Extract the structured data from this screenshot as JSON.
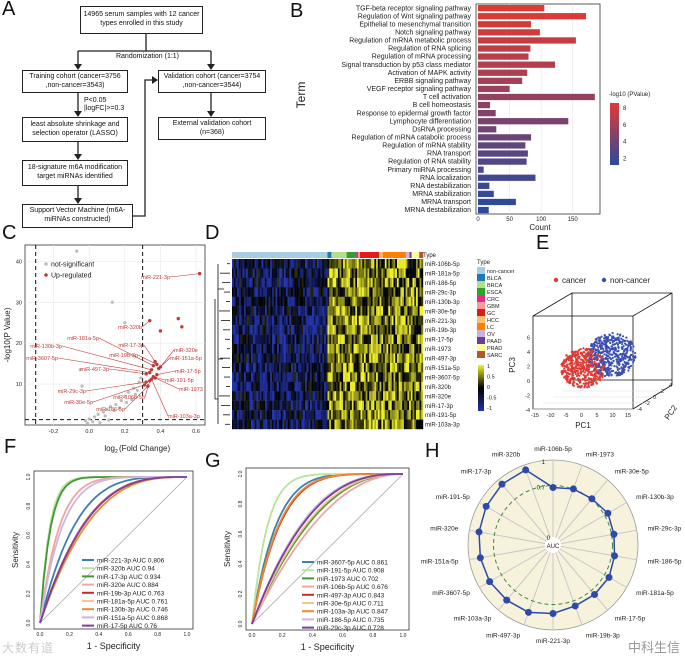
{
  "panels": {
    "A": "A",
    "B": "B",
    "C": "C",
    "D": "D",
    "E": "E",
    "F": "F",
    "G": "G",
    "H": "H"
  },
  "flowchart": {
    "start": "14965 serum samples with 12 cancer types enrolled in this study",
    "randomization": "Randomization (1:1)",
    "training": "Training cohort (cancer=3756 ,non-cancer=3543)",
    "validation": "Validation cohort (cancer=3754 ,non-cancer=3544)",
    "filter": "P<0.05 |logFC|>=0.3",
    "lasso": "least absolute shrinkage and selection operator (LASSO)",
    "external": "External validation cohort (n=368)",
    "signature": "18-signature m6A modification target miRNAs identified",
    "svm": "Support Vector Machine (m6A-miRNAs constructed)"
  },
  "watermarks": [
    "大数有道",
    "中科生信"
  ],
  "chart_data": [
    {
      "panel": "B",
      "type": "bar",
      "orientation": "horizontal",
      "xlabel": "Count",
      "ylabel": "Term",
      "xlim": [
        0,
        190
      ],
      "xticks": [
        0,
        50,
        100,
        150
      ],
      "legend_title": "-log10 (PValue)",
      "legend_ticks": [
        2,
        4,
        6,
        8
      ],
      "colors": {
        "low": "#2b4a9b",
        "high": "#e03a34"
      },
      "categories": [
        "TGF-beta receptor signaling pathway",
        "Regulation of Wnt signaling pathway",
        "Epithelial to mesenchymal transition",
        "Notch signaling pathway",
        "Regulation of mRNA metabolic process",
        "Regulation of RNA splicing",
        "Regulation of mRNA processing",
        "Signal transduction by p53 class mediator",
        "Activation of MAPK activity",
        "ERBB signaling pathway",
        "VEGF receptor signaling pathway",
        "T cell activation",
        "B cell homeostasis",
        "Response to epidermal growth factor",
        "Lymphocyte differentiation",
        "DsRNA processing",
        "Regulation of mRNA catabolic process",
        "Regulation of mRNA stability",
        "RNA transport",
        "Regulation of RNA stability",
        "Primary miRNA processing",
        "RNA localization",
        "RNA destabilization",
        "MRNA stabilization",
        "MRNA transport",
        "MRNA destabilization"
      ],
      "values": [
        105,
        171,
        84,
        98,
        155,
        83,
        80,
        122,
        78,
        70,
        50,
        185,
        19,
        28,
        143,
        29,
        84,
        75,
        79,
        77,
        9,
        91,
        18,
        25,
        60,
        17
      ],
      "pvalue": [
        8.6,
        8.4,
        8.1,
        7.9,
        7.6,
        7.4,
        7.1,
        6.9,
        6.6,
        6.3,
        6.0,
        5.6,
        5.3,
        5.0,
        4.6,
        4.3,
        4.0,
        3.6,
        3.3,
        3.0,
        2.7,
        2.4,
        2.1,
        1.9,
        1.7,
        1.5
      ]
    },
    {
      "panel": "C",
      "type": "scatter",
      "xlabel": "log2(Fold Change)",
      "ylabel": "-log10(P Value)",
      "xlim": [
        -0.36,
        0.65
      ],
      "ylim": [
        0,
        44
      ],
      "xticks": [
        -0.2,
        0.0,
        0.2,
        0.4,
        0.6
      ],
      "yticks": [
        10,
        20,
        30,
        40
      ],
      "thresholds": {
        "x": [
          -0.3,
          0.3
        ],
        "y": 1.3
      },
      "legend": [
        "not-significant",
        "Up-regulated"
      ],
      "legend_position": "top-left",
      "colors": {
        "ns": "#bdbdbd",
        "up": "#c0393b"
      },
      "up_points": [
        {
          "label": "miR-221-3p",
          "x": 0.62,
          "y": 37
        },
        {
          "label": "miR-320b",
          "x": 0.34,
          "y": 25.5
        },
        {
          "label": "miR-181a-5p",
          "x": 0.36,
          "y": 14.5
        },
        {
          "label": "miR-17-3p",
          "x": 0.37,
          "y": 15.5
        },
        {
          "label": "miR-130b-3p",
          "x": 0.35,
          "y": 13.5
        },
        {
          "label": "miR-19b-3p",
          "x": 0.38,
          "y": 14.8
        },
        {
          "label": "miR-320e",
          "x": 0.4,
          "y": 14.2
        },
        {
          "label": "miR-151a-5p",
          "x": 0.39,
          "y": 13.8
        },
        {
          "label": "miR-3607-5p",
          "x": 0.34,
          "y": 12.8
        },
        {
          "label": "miR-497-3p",
          "x": 0.32,
          "y": 12.5
        },
        {
          "label": "miR-17-5p",
          "x": 0.38,
          "y": 12.3
        },
        {
          "label": "miR-191-5p",
          "x": 0.36,
          "y": 11.8
        },
        {
          "label": "miR-1973",
          "x": 0.37,
          "y": 11.5
        },
        {
          "label": "miR-29c-3p",
          "x": 0.32,
          "y": 10.5
        },
        {
          "label": "miR-106b-5p",
          "x": 0.34,
          "y": 10.8
        },
        {
          "label": "miR-30e-5p",
          "x": 0.31,
          "y": 9.8
        },
        {
          "label": "miR-186-5p",
          "x": 0.33,
          "y": 9.5
        },
        {
          "label": "miR-103a-3p",
          "x": 0.35,
          "y": 11.2
        },
        {
          "label": "",
          "x": 0.5,
          "y": 26
        },
        {
          "label": "",
          "x": 0.52,
          "y": 24
        },
        {
          "label": "",
          "x": 0.4,
          "y": 23
        }
      ],
      "ns_points": [
        [
          -0.07,
          42.5
        ],
        [
          0.13,
          30
        ],
        [
          0.2,
          25
        ],
        [
          -0.05,
          13.5
        ],
        [
          -0.04,
          9.5
        ],
        [
          0.25,
          9
        ],
        [
          0.22,
          8
        ],
        [
          0.2,
          7
        ],
        [
          0.18,
          6
        ],
        [
          0.15,
          5
        ],
        [
          0.12,
          4.5
        ],
        [
          0.1,
          3.8
        ],
        [
          0.08,
          3.2
        ],
        [
          0.05,
          2.6
        ],
        [
          0.03,
          2
        ],
        [
          0.0,
          1.5
        ],
        [
          -0.02,
          1
        ],
        [
          0.06,
          0.6
        ],
        [
          0.28,
          10.5
        ],
        [
          0.27,
          8.5
        ],
        [
          0.26,
          7.5
        ],
        [
          0.24,
          6.2
        ],
        [
          0.21,
          5.5
        ],
        [
          0.17,
          4.2
        ],
        [
          0.14,
          3.5
        ],
        [
          0.09,
          2.2
        ],
        [
          0.02,
          0.8
        ],
        [
          -0.01,
          0.4
        ],
        [
          0.11,
          1.2
        ],
        [
          0.29,
          11.5
        ]
      ]
    },
    {
      "panel": "D",
      "type": "heatmap",
      "rows": [
        "miR-106b-5p",
        "miR-181a-5p",
        "miR-186-5p",
        "miR-29c-3p",
        "miR-130b-3p",
        "miR-30e-5p",
        "miR-221-3p",
        "miR-19b-3p",
        "miR-17-5p",
        "miR-1973",
        "miR-497-3p",
        "miR-151a-5p",
        "miR-3607-5p",
        "miR-320b",
        "miR-320e",
        "miR-17-3p",
        "miR-191-5p",
        "miR-103a-3p"
      ],
      "annotation_title": "Type",
      "types": [
        {
          "name": "non-cancer",
          "color": "#a6cee3",
          "share": 0.5
        },
        {
          "name": "BLCA",
          "color": "#1f78b4",
          "share": 0.02
        },
        {
          "name": "BRCA",
          "color": "#b2df8a",
          "share": 0.08
        },
        {
          "name": "ESCA",
          "color": "#33a02c",
          "share": 0.05
        },
        {
          "name": "CRC",
          "color": "#e7298a",
          "share": 0.01
        },
        {
          "name": "GBM",
          "color": "#fb9a99",
          "share": 0.01
        },
        {
          "name": "GC",
          "color": "#e31a1c",
          "share": 0.1
        },
        {
          "name": "HCC",
          "color": "#fdbf6f",
          "share": 0.02
        },
        {
          "name": "LC",
          "color": "#ff7f00",
          "share": 0.12
        },
        {
          "name": "OV",
          "color": "#cab2d6",
          "share": 0.02
        },
        {
          "name": "PAAD",
          "color": "#6a3d9a",
          "share": 0.01
        },
        {
          "name": "PRAD",
          "color": "#ffff99",
          "share": 0.04
        },
        {
          "name": "SARC",
          "color": "#b15928",
          "share": 0.02
        }
      ],
      "scale_ticks": [
        "1",
        "0.5",
        "0",
        "-0.5",
        "-1"
      ],
      "colors": {
        "low": "#2233aa",
        "mid": "#000000",
        "high": "#f2f22a"
      }
    },
    {
      "panel": "E",
      "type": "scatter3d",
      "xlabel": "PC1",
      "ylabel": "PC2",
      "zlabel": "PC3",
      "xticks": [
        -15,
        -10,
        -5,
        0,
        5,
        10,
        15
      ],
      "yticks": [
        -4,
        -2,
        0,
        2,
        4
      ],
      "zticks": [
        -4,
        -2,
        0,
        2,
        4,
        6
      ],
      "legend": [
        {
          "name": "cancer",
          "color": "#e03a34"
        },
        {
          "name": "non-cancer",
          "color": "#3a4fb0"
        }
      ],
      "legend_position": "top"
    },
    {
      "panel": "F",
      "type": "line",
      "subtype": "roc",
      "xlabel": "1 - Specificity",
      "ylabel": "Sensitivity",
      "xlim": [
        0,
        1
      ],
      "ylim": [
        0,
        1
      ],
      "ticks": [
        "0.0",
        "0.2",
        "0.4",
        "0.6",
        "0.8",
        "1.0"
      ],
      "series": [
        {
          "name": "miR-221-3p",
          "auc": 0.806,
          "color": "#3f7fb0"
        },
        {
          "name": "miR-320b",
          "auc": 0.94,
          "color": "#b9e29a"
        },
        {
          "name": "miR-17-3p",
          "auc": 0.934,
          "color": "#3f9a35"
        },
        {
          "name": "miR-320e",
          "auc": 0.884,
          "color": "#f2a3a3"
        },
        {
          "name": "miR-19b-3p",
          "auc": 0.763,
          "color": "#c9282d"
        },
        {
          "name": "miR-181a-5p",
          "auc": 0.761,
          "color": "#f7c48a"
        },
        {
          "name": "miR-130b-3p",
          "auc": 0.746,
          "color": "#f08a2a"
        },
        {
          "name": "miR-151a-5p",
          "auc": 0.868,
          "color": "#cdb8db"
        },
        {
          "name": "miR-17-5p",
          "auc": 0.76,
          "color": "#7a3ea0"
        }
      ]
    },
    {
      "panel": "G",
      "type": "line",
      "subtype": "roc",
      "xlabel": "1 - Specificity",
      "ylabel": "Sensitivity",
      "xlim": [
        0,
        1
      ],
      "ylim": [
        0,
        1
      ],
      "ticks": [
        "0.0",
        "0.2",
        "0.4",
        "0.6",
        "0.8",
        "1.0"
      ],
      "series": [
        {
          "name": "miR-3607-5p",
          "auc": 0.861,
          "color": "#3f7fb0"
        },
        {
          "name": "miR-191-5p",
          "auc": 0.908,
          "color": "#b9e29a"
        },
        {
          "name": "miR-1973",
          "auc": 0.702,
          "color": "#3f9a35"
        },
        {
          "name": "miR-106b-5p",
          "auc": 0.676,
          "color": "#f2a3a3"
        },
        {
          "name": "miR-497-3p",
          "auc": 0.843,
          "color": "#c9282d"
        },
        {
          "name": "miR-30e-5p",
          "auc": 0.711,
          "color": "#f7c48a"
        },
        {
          "name": "miR-103a-3p",
          "auc": 0.847,
          "color": "#f08a2a"
        },
        {
          "name": "miR-186-5p",
          "auc": 0.735,
          "color": "#cdb8db"
        },
        {
          "name": "miR-29c-3p",
          "auc": 0.728,
          "color": "#7a3ea0"
        }
      ]
    },
    {
      "panel": "H",
      "type": "radar",
      "axis_label": "AUC",
      "rlim": [
        0,
        1
      ],
      "ring_labels": [
        "0",
        "0.7",
        "1"
      ],
      "reference": 0.7,
      "colors": {
        "line": "#2e4aa8",
        "ref": "#3a8a4a",
        "bg": "#f7f2dc"
      },
      "categories": [
        "miR-106b-5p",
        "miR-1973",
        "miR-30e-5p",
        "miR-130b-3p",
        "miR-29c-3p",
        "miR-186-5p",
        "miR-181a-5p",
        "miR-17-5p",
        "miR-19b-3p",
        "miR-221-3p",
        "miR-497-3p",
        "miR-103a-3p",
        "miR-3607-5p",
        "miR-151a-5p",
        "miR-320e",
        "miR-191-5p",
        "miR-17-3p",
        "miR-320b"
      ],
      "values": [
        0.676,
        0.702,
        0.711,
        0.746,
        0.728,
        0.735,
        0.761,
        0.76,
        0.763,
        0.806,
        0.843,
        0.847,
        0.861,
        0.868,
        0.884,
        0.908,
        0.934,
        0.94
      ]
    }
  ]
}
